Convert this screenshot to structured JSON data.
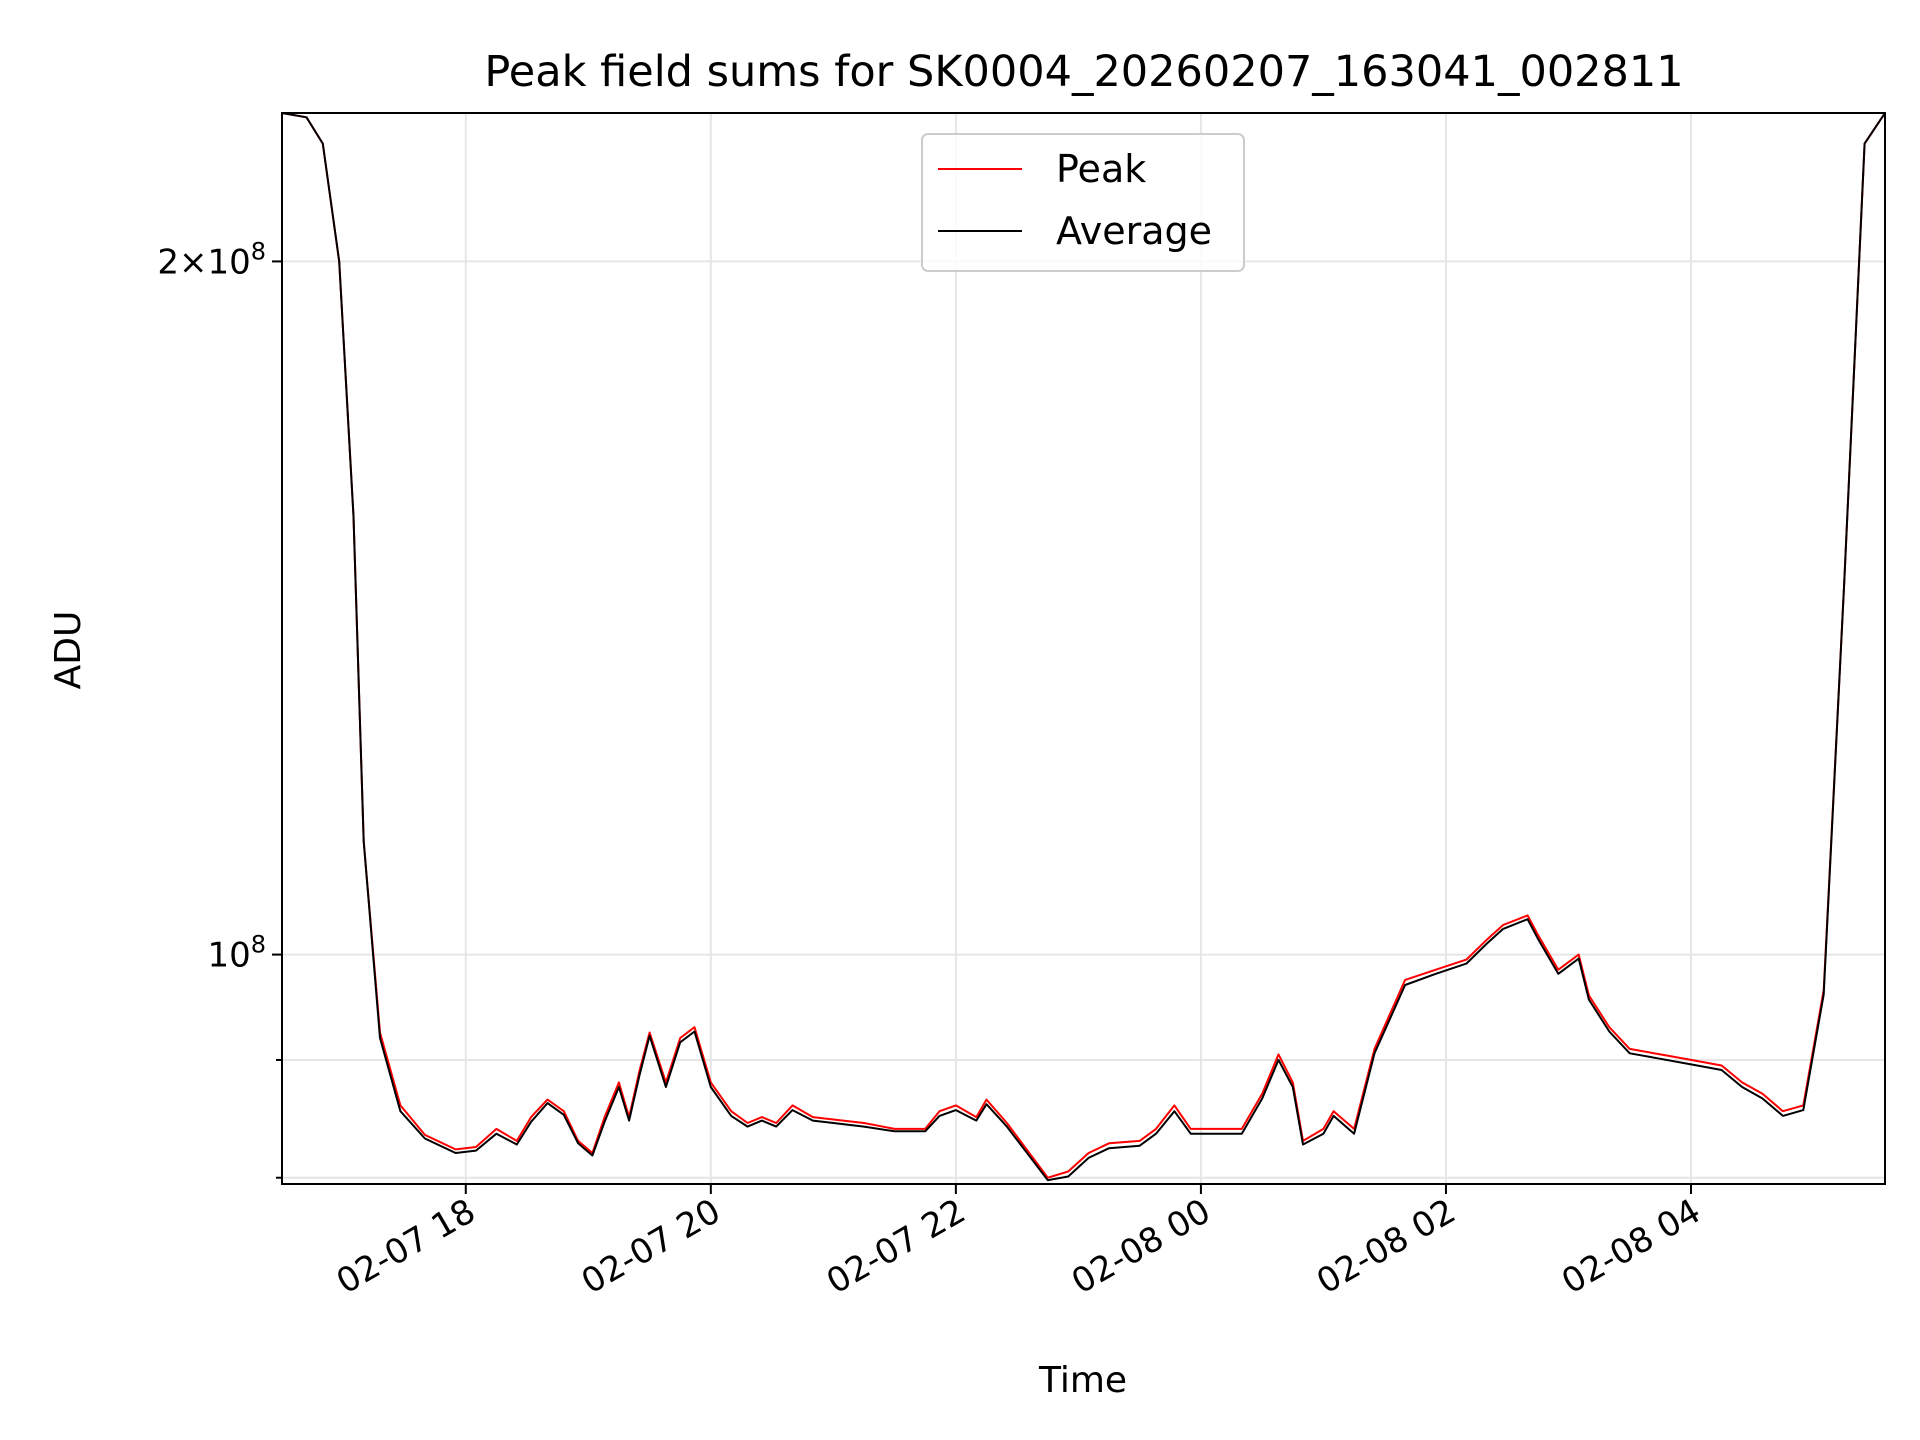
{
  "chart_data": {
    "type": "line",
    "title": "Peak field sums for SK0004_20260207_163041_002811",
    "xlabel": "Time",
    "ylabel": "ADU",
    "yscale": "log",
    "grid": true,
    "legend_position": "upper-center",
    "xlim": [
      "2026-02-07 16:30",
      "2026-02-08 05:35"
    ],
    "ylim": [
      79500000,
      232000000
    ],
    "x_ticks": [
      {
        "value": "2026-02-07 18:00",
        "label": "02-07 18"
      },
      {
        "value": "2026-02-07 20:00",
        "label": "02-07 20"
      },
      {
        "value": "2026-02-07 22:00",
        "label": "02-07 22"
      },
      {
        "value": "2026-02-08 00:00",
        "label": "02-08 00"
      },
      {
        "value": "2026-02-08 02:00",
        "label": "02-08 02"
      },
      {
        "value": "2026-02-08 04:00",
        "label": "02-08 04"
      }
    ],
    "y_major_ticks": [
      {
        "value": 100000000,
        "mantissa": "",
        "exponent": "8"
      },
      {
        "value": 200000000,
        "mantissa": "2",
        "exponent": "8"
      }
    ],
    "y_minor_ticks": [
      80000000,
      90000000
    ],
    "series": [
      {
        "name": "Peak",
        "color": "#ff0000",
        "x": [
          "2026-02-07 16:30",
          "2026-02-07 16:42",
          "2026-02-07 16:50",
          "2026-02-07 16:58",
          "2026-02-07 17:05",
          "2026-02-07 17:10",
          "2026-02-07 17:18",
          "2026-02-07 17:28",
          "2026-02-07 17:40",
          "2026-02-07 17:55",
          "2026-02-07 18:05",
          "2026-02-07 18:15",
          "2026-02-07 18:25",
          "2026-02-07 18:32",
          "2026-02-07 18:40",
          "2026-02-07 18:48",
          "2026-02-07 18:55",
          "2026-02-07 19:02",
          "2026-02-07 19:08",
          "2026-02-07 19:15",
          "2026-02-07 19:20",
          "2026-02-07 19:25",
          "2026-02-07 19:30",
          "2026-02-07 19:38",
          "2026-02-07 19:45",
          "2026-02-07 19:52",
          "2026-02-07 20:00",
          "2026-02-07 20:10",
          "2026-02-07 20:18",
          "2026-02-07 20:25",
          "2026-02-07 20:32",
          "2026-02-07 20:40",
          "2026-02-07 20:50",
          "2026-02-07 21:00",
          "2026-02-07 21:15",
          "2026-02-07 21:30",
          "2026-02-07 21:45",
          "2026-02-07 21:52",
          "2026-02-07 22:00",
          "2026-02-07 22:10",
          "2026-02-07 22:15",
          "2026-02-07 22:25",
          "2026-02-07 22:45",
          "2026-02-07 22:55",
          "2026-02-07 23:05",
          "2026-02-07 23:15",
          "2026-02-07 23:30",
          "2026-02-07 23:38",
          "2026-02-07 23:47",
          "2026-02-07 23:55",
          "2026-02-08 00:10",
          "2026-02-08 00:20",
          "2026-02-08 00:30",
          "2026-02-08 00:38",
          "2026-02-08 00:45",
          "2026-02-08 00:50",
          "2026-02-08 01:00",
          "2026-02-08 01:05",
          "2026-02-08 01:15",
          "2026-02-08 01:25",
          "2026-02-08 01:40",
          "2026-02-08 01:55",
          "2026-02-08 02:10",
          "2026-02-08 02:20",
          "2026-02-08 02:28",
          "2026-02-08 02:40",
          "2026-02-08 02:45",
          "2026-02-08 02:55",
          "2026-02-08 03:05",
          "2026-02-08 03:10",
          "2026-02-08 03:20",
          "2026-02-08 03:30",
          "2026-02-08 03:45",
          "2026-02-08 04:00",
          "2026-02-08 04:15",
          "2026-02-08 04:25",
          "2026-02-08 04:35",
          "2026-02-08 04:45",
          "2026-02-08 04:55",
          "2026-02-08 05:05",
          "2026-02-08 05:15",
          "2026-02-08 05:25",
          "2026-02-08 05:35"
        ],
        "y": [
          232000000,
          231000000,
          225000000,
          200000000,
          155000000,
          112000000,
          92500000,
          86000000,
          83500000,
          82300000,
          82500000,
          84000000,
          83000000,
          85000000,
          86500000,
          85500000,
          83000000,
          82000000,
          85000000,
          88000000,
          85000000,
          89000000,
          92500000,
          88000000,
          92000000,
          93000000,
          88000000,
          85500000,
          84500000,
          85000000,
          84500000,
          86000000,
          85000000,
          84800000,
          84500000,
          84000000,
          84000000,
          85500000,
          86000000,
          85000000,
          86500000,
          84500000,
          80000000,
          80500000,
          82000000,
          82800000,
          83000000,
          84000000,
          86000000,
          84000000,
          84000000,
          84000000,
          87000000,
          90500000,
          88000000,
          83000000,
          84000000,
          85500000,
          84000000,
          91000000,
          97500000,
          98500000,
          99500000,
          101500000,
          103000000,
          104000000,
          102000000,
          98500000,
          100000000,
          96000000,
          93000000,
          91000000,
          90500000,
          90000000,
          89500000,
          88000000,
          87000000,
          85500000,
          86000000,
          96500000,
          145000000,
          225000000,
          232000000
        ]
      },
      {
        "name": "Average",
        "color": "#000000",
        "x": [
          "2026-02-07 16:30",
          "2026-02-07 16:42",
          "2026-02-07 16:50",
          "2026-02-07 16:58",
          "2026-02-07 17:05",
          "2026-02-07 17:10",
          "2026-02-07 17:18",
          "2026-02-07 17:28",
          "2026-02-07 17:40",
          "2026-02-07 17:55",
          "2026-02-07 18:05",
          "2026-02-07 18:15",
          "2026-02-07 18:25",
          "2026-02-07 18:32",
          "2026-02-07 18:40",
          "2026-02-07 18:48",
          "2026-02-07 18:55",
          "2026-02-07 19:02",
          "2026-02-07 19:08",
          "2026-02-07 19:15",
          "2026-02-07 19:20",
          "2026-02-07 19:25",
          "2026-02-07 19:30",
          "2026-02-07 19:38",
          "2026-02-07 19:45",
          "2026-02-07 19:52",
          "2026-02-07 20:00",
          "2026-02-07 20:10",
          "2026-02-07 20:18",
          "2026-02-07 20:25",
          "2026-02-07 20:32",
          "2026-02-07 20:40",
          "2026-02-07 20:50",
          "2026-02-07 21:00",
          "2026-02-07 21:15",
          "2026-02-07 21:30",
          "2026-02-07 21:45",
          "2026-02-07 21:52",
          "2026-02-07 22:00",
          "2026-02-07 22:10",
          "2026-02-07 22:15",
          "2026-02-07 22:25",
          "2026-02-07 22:45",
          "2026-02-07 22:55",
          "2026-02-07 23:05",
          "2026-02-07 23:15",
          "2026-02-07 23:30",
          "2026-02-07 23:38",
          "2026-02-07 23:47",
          "2026-02-07 23:55",
          "2026-02-08 00:10",
          "2026-02-08 00:20",
          "2026-02-08 00:30",
          "2026-02-08 00:38",
          "2026-02-08 00:45",
          "2026-02-08 00:50",
          "2026-02-08 01:00",
          "2026-02-08 01:05",
          "2026-02-08 01:15",
          "2026-02-08 01:25",
          "2026-02-08 01:40",
          "2026-02-08 01:55",
          "2026-02-08 02:10",
          "2026-02-08 02:20",
          "2026-02-08 02:28",
          "2026-02-08 02:40",
          "2026-02-08 02:45",
          "2026-02-08 02:55",
          "2026-02-08 03:05",
          "2026-02-08 03:10",
          "2026-02-08 03:20",
          "2026-02-08 03:30",
          "2026-02-08 03:45",
          "2026-02-08 04:00",
          "2026-02-08 04:15",
          "2026-02-08 04:25",
          "2026-02-08 04:35",
          "2026-02-08 04:45",
          "2026-02-08 04:55",
          "2026-02-08 05:05",
          "2026-02-08 05:15",
          "2026-02-08 05:25",
          "2026-02-08 05:35"
        ],
        "y": [
          232000000,
          231000000,
          225000000,
          200000000,
          155000000,
          112000000,
          92000000,
          85500000,
          83200000,
          82000000,
          82200000,
          83600000,
          82700000,
          84600000,
          86200000,
          85200000,
          82800000,
          81800000,
          84600000,
          87600000,
          84700000,
          88600000,
          92200000,
          87600000,
          91600000,
          92600000,
          87600000,
          85100000,
          84200000,
          84700000,
          84200000,
          85600000,
          84700000,
          84500000,
          84200000,
          83800000,
          83800000,
          85100000,
          85600000,
          84700000,
          86100000,
          84200000,
          79800000,
          80100000,
          81600000,
          82400000,
          82600000,
          83600000,
          85500000,
          83600000,
          83600000,
          83600000,
          86600000,
          90000000,
          87600000,
          82700000,
          83600000,
          85100000,
          83600000,
          90600000,
          97000000,
          98100000,
          99100000,
          101100000,
          102600000,
          103600000,
          101600000,
          98100000,
          99600000,
          95600000,
          92600000,
          90600000,
          90100000,
          89600000,
          89100000,
          87600000,
          86600000,
          85100000,
          85600000,
          96100000,
          145000000,
          225000000,
          232000000
        ]
      }
    ]
  }
}
